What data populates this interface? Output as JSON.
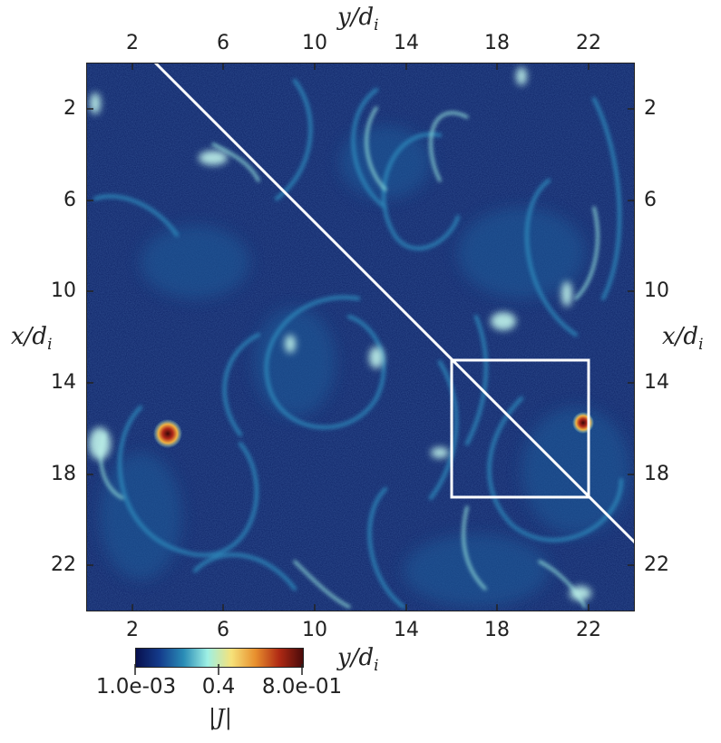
{
  "figure": {
    "x_axis_label": "x/d",
    "x_axis_sub": "i",
    "y_axis_label": "y/d",
    "y_axis_sub": "i",
    "colorbar": {
      "label": "|J|",
      "tick_labels": [
        "1.0e-03",
        "0.4",
        "8.0e-01"
      ],
      "colors": [
        "#08104e",
        "#143c8c",
        "#2a8cb6",
        "#9ef0e4",
        "#f6e27a",
        "#e8902e",
        "#b02a14",
        "#4a0a0a"
      ]
    },
    "top_ticks": [
      "2",
      "6",
      "10",
      "14",
      "18",
      "22"
    ],
    "bottom_ticks": [
      "2",
      "6",
      "10",
      "14",
      "18",
      "22"
    ],
    "left_ticks": [
      "2",
      "6",
      "10",
      "14",
      "18",
      "22"
    ],
    "right_ticks": [
      "2",
      "6",
      "10",
      "14",
      "18",
      "22"
    ],
    "field": {
      "background_color": "#0d2366",
      "structure_color": "#2f8fbf",
      "bright_color": "#bff3ea",
      "core_color": "#7a1410"
    },
    "diagonal_line": {
      "from": [
        0,
        3
      ],
      "to": [
        21,
        24
      ]
    },
    "inset_box": {
      "x_range": [
        13,
        19
      ],
      "y_range": [
        16,
        22
      ]
    }
  }
}
